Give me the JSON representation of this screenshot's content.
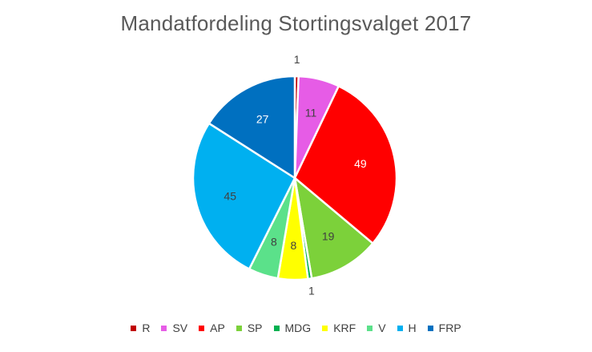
{
  "chart_data": {
    "type": "pie",
    "title": "Mandatfordeling Stortingsvalget 2017",
    "series": [
      {
        "categories": [
          "R",
          "SV",
          "AP",
          "SP",
          "MDG",
          "KRF",
          "V",
          "H",
          "FRP"
        ],
        "values": [
          1,
          11,
          49,
          19,
          1,
          8,
          8,
          45,
          27
        ],
        "colors": [
          "#c00000",
          "#e65ce6",
          "#ff0000",
          "#7cd13a",
          "#00b050",
          "#ffff00",
          "#5be18a",
          "#00b0f0",
          "#0070c0"
        ],
        "label_colors": [
          "#404040",
          "#404040",
          "#ffffff",
          "#404040",
          "#404040",
          "#404040",
          "#404040",
          "#404040",
          "#ffffff"
        ]
      }
    ],
    "legend_position": "bottom",
    "data_labels": true
  }
}
